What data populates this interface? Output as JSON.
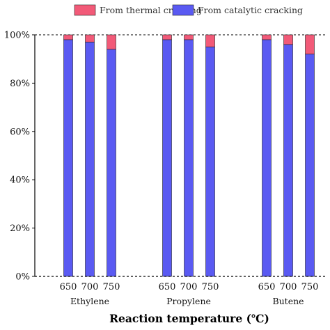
{
  "chart_data": {
    "type": "bar",
    "stacked": true,
    "percent_stacked": true,
    "xlabel": "Reaction temperature (℃)",
    "ylabel": "",
    "ylim": [
      0,
      100
    ],
    "yticks": [
      "0%",
      "20%",
      "40%",
      "60%",
      "80%",
      "100%"
    ],
    "ytick_values": [
      0,
      20,
      40,
      60,
      80,
      100
    ],
    "legend_position": "top",
    "groups": [
      {
        "name": "Ethylene",
        "categories": [
          "650",
          "700",
          "750"
        ]
      },
      {
        "name": "Propylene",
        "categories": [
          "650",
          "700",
          "750"
        ]
      },
      {
        "name": "Butene",
        "categories": [
          "650",
          "700",
          "750"
        ]
      }
    ],
    "series": [
      {
        "name": "From catalytic cracking",
        "color": "#5a5af2",
        "values": [
          98,
          97,
          94,
          98,
          98,
          95,
          98,
          96,
          92
        ]
      },
      {
        "name": "From thermal cracking",
        "color": "#f25a78",
        "values": [
          2,
          3,
          6,
          2,
          2,
          5,
          2,
          4,
          8
        ]
      }
    ],
    "legend_order": [
      "From thermal cracking",
      "From catalytic cracking"
    ]
  }
}
